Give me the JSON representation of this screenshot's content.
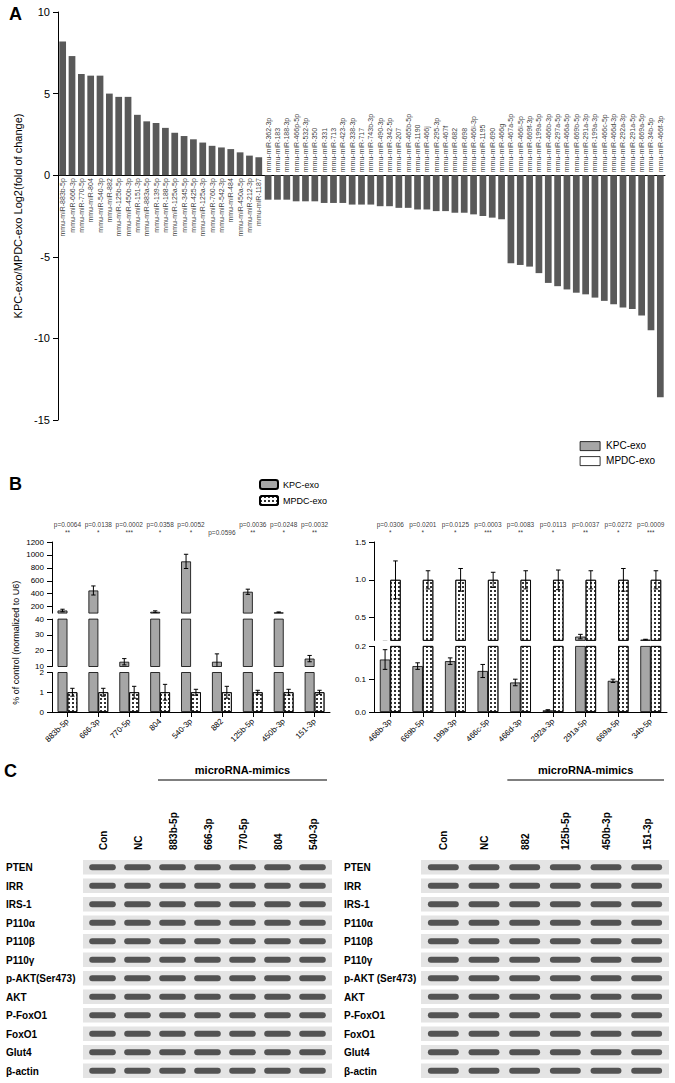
{
  "chart_data": [
    {
      "type": "bar",
      "title": "A",
      "ylabel": "KPC-exo/MPDC-exo Log2(fold of change)",
      "categories": [
        "mmu-miR-883b-5p",
        "mmu-miR-666-3p",
        "mmu-miR-770-5p",
        "mmu-miR-804",
        "mmu-miR-540-3p",
        "mmu-miR-882",
        "mmu-miR-125b-5p",
        "mmu-miR-450b-3p",
        "mmu-miR-151-3p",
        "mmu-miR-883a-5p",
        "mmu-miR-139-5p",
        "mmu-miR-188-5p",
        "mmu-miR-125a-5p",
        "mmu-miR-345-5p",
        "mmu-miR-425-5p",
        "mmu-miR-125a-3p",
        "mmu-miR-760-3p",
        "mmu-miR-542-3p",
        "mmu-miR-484",
        "mmu-miR-450a-5p",
        "mmu-miR-212-3p",
        "mmu-miR-1187",
        "mmu-miR-362-3p",
        "mmu-miR-183",
        "mmu-miR-188-3p",
        "mmu-miR-466p-5p",
        "mmu-miR-532-3p",
        "mmu-miR-350",
        "mmu-miR-331",
        "mmu-miR-713",
        "mmu-miR-423-3p",
        "mmu-miR-338-3p",
        "mmu-miR-717",
        "mmu-miR-743b-3p",
        "mmu-miR-490-3p",
        "mmu-miR-342-5p",
        "mmu-miR-207",
        "mmu-miR-465b-5p",
        "mmu-miR-1190",
        "mmu-miR-466j",
        "mmu-miR-295-3p",
        "mmu-miR-467f",
        "mmu-miR-682",
        "mmu-miR-698",
        "mmu-miR-466i-3p",
        "mmu-miR-1195",
        "mmu-miR-690",
        "mmu-miR-466g",
        "mmu-miR-467a-5p",
        "mmu-miR-466i-5p",
        "mmu-miR-669f-3p",
        "mmu-miR-199a-5p",
        "mmu-miR-466b-3p",
        "mmu-miR-297a-5p",
        "mmu-miR-466a-5p",
        "mmu-miR-669b-5p",
        "mmu-miR-291a-3p",
        "mmu-miR-199a-3p",
        "mmu-miR-466c-5p",
        "mmu-miR-466d-3p",
        "mmu-miR-292a-3p",
        "mmu-miR-291a-5p",
        "mmu-miR-669a-5p",
        "mmu-miR-34b-5p",
        "mmu-miR-466f-3p"
      ],
      "values": [
        8.2,
        7.3,
        6.2,
        6.1,
        6.1,
        5,
        4.8,
        4.8,
        3.7,
        3.3,
        3.2,
        2.9,
        2.6,
        2.4,
        2.2,
        2,
        1.8,
        1.7,
        1.6,
        1.4,
        1.2,
        1.1,
        -1.5,
        -1.5,
        -1.5,
        -1.6,
        -1.6,
        -1.6,
        -1.7,
        -1.7,
        -1.7,
        -1.8,
        -1.8,
        -1.8,
        -1.9,
        -1.9,
        -2,
        -2,
        -2.1,
        -2.1,
        -2.2,
        -2.2,
        -2.3,
        -2.3,
        -2.4,
        -2.5,
        -2.6,
        -2.7,
        -5.4,
        -5.5,
        -5.6,
        -6,
        -6.6,
        -6.8,
        -7,
        -7.2,
        -7.3,
        -7.5,
        -7.7,
        -7.9,
        -8.1,
        -8.2,
        -8.6,
        -9.5,
        -13.6
      ],
      "color": "#595959",
      "ylim": [
        -15,
        10
      ],
      "yticks": [
        -15,
        -10,
        -5,
        0,
        5,
        10
      ],
      "grid": false,
      "annotations": [
        "KPC-exo",
        "MPDC-exo"
      ]
    },
    {
      "type": "bar",
      "title": "B",
      "ylabel": "% of control (normalized to U6)",
      "legend": "upper right",
      "grid": false,
      "categories": [
        "883b-5p",
        "666-3p",
        "770-5p",
        "804",
        "540-3p",
        "882",
        "125b-5p",
        "450b-3p",
        "151-3p"
      ],
      "series": [
        {
          "name": "KPC-exo",
          "color": "#a6a6a6",
          "values": [
            140,
            450,
            13,
            120,
            900,
            13,
            430,
            110,
            15
          ],
          "errors": [
            20,
            70,
            2,
            15,
            110,
            5,
            40,
            8,
            2
          ]
        },
        {
          "name": "MPDC-exo",
          "color": "#ffffff",
          "values": [
            1,
            1,
            1,
            1,
            1,
            1,
            1,
            1,
            1
          ],
          "errors": [
            0.2,
            0.2,
            0.3,
            0.4,
            0.15,
            0.3,
            0.1,
            0.15,
            0.1
          ]
        }
      ],
      "segments": [
        {
          "ylim": [
            0,
            2
          ],
          "yticks": [
            0,
            1,
            2
          ]
        },
        {
          "ylim": [
            10,
            40
          ],
          "yticks": [
            10,
            20,
            30,
            40
          ]
        },
        {
          "ylim": [
            100,
            1200
          ],
          "yticks": [
            200,
            400,
            600,
            800,
            1000,
            1200
          ]
        }
      ],
      "annotations": [
        {
          "category": "883b-5p",
          "text": "p=0.0064",
          "stars": "**"
        },
        {
          "category": "666-3p",
          "text": "p=0.0138",
          "stars": "*"
        },
        {
          "category": "770-5p",
          "text": "p=0.0002",
          "stars": "***"
        },
        {
          "category": "804",
          "text": "p=0.0358",
          "stars": "*"
        },
        {
          "category": "540-3p",
          "text": "p=0.0052",
          "stars": "*"
        },
        {
          "category": "882",
          "text": "p=0.0596"
        },
        {
          "category": "125b-5p",
          "text": "p=0.0036",
          "stars": "**"
        },
        {
          "category": "450b-3p",
          "text": "p=0.0248",
          "stars": "*"
        },
        {
          "category": "151-3p",
          "text": "p=0.0032",
          "stars": "**"
        }
      ]
    },
    {
      "type": "bar",
      "grid": false,
      "categories": [
        "466b-3p",
        "669b-5p",
        "199a-3p",
        "466c-5p",
        "466d-3p",
        "292a-3p",
        "291a-5p",
        "669a-5p",
        "34b-5p"
      ],
      "series": [
        {
          "name": "KPC-exo",
          "color": "#a6a6a6",
          "values": [
            0.16,
            0.14,
            0.155,
            0.125,
            0.09,
            0.005,
            0.25,
            0.095,
            0.21
          ],
          "errors": [
            0.03,
            0.01,
            0.01,
            0.02,
            0.01,
            0.002,
            0.03,
            0.005,
            0.005
          ]
        },
        {
          "name": "MPDC-exo",
          "color": "#ffffff",
          "values": [
            1,
            1,
            1,
            1,
            1,
            1,
            1,
            1,
            1
          ],
          "errors": [
            0.25,
            0.12,
            0.15,
            0.1,
            0.12,
            0.13,
            0.12,
            0.15,
            0.12
          ]
        }
      ],
      "segments": [
        {
          "ylim": [
            0,
            0.2
          ],
          "yticks": [
            {
              "value": 0,
              "label": "0.0"
            },
            0.1,
            0.2
          ]
        },
        {
          "ylim": [
            0.2,
            1.5
          ],
          "yticks": [
            0.5,
            {
              "value": 1,
              "label": "1.0"
            },
            1.5
          ]
        }
      ],
      "annotations": [
        {
          "category": "466b-3p",
          "text": "p=0.0306",
          "stars": "*"
        },
        {
          "category": "669b-5p",
          "text": "p=0.0201",
          "stars": "*"
        },
        {
          "category": "199a-3p",
          "text": "p=0.0125",
          "stars": "*"
        },
        {
          "category": "466c-5p",
          "text": "p=0.0003",
          "stars": "***"
        },
        {
          "category": "466d-3p",
          "text": "p=0.0083",
          "stars": "**"
        },
        {
          "category": "292a-3p",
          "text": "p=0.0113",
          "stars": "*"
        },
        {
          "category": "291a-5p",
          "text": "p=0.0037",
          "stars": "**"
        },
        {
          "category": "669a-5p",
          "text": "p=0.0272",
          "stars": "*"
        },
        {
          "category": "34b-5p",
          "text": "p=0.0009",
          "stars": "***"
        }
      ]
    }
  ],
  "blots": [
    {
      "title": "C",
      "header": "microRNA-mimics",
      "controls": [
        "Con",
        "NC"
      ],
      "mimics": [
        "883b-5p",
        "666-3p",
        "770-5p",
        "804",
        "540-3p"
      ],
      "proteins": [
        "PTEN",
        "IRR",
        "IRS-1",
        "P110α",
        "P110β",
        "P110γ",
        "p-AKT(Ser473)",
        "AKT",
        "P-FoxO1",
        "FoxO1",
        "Glut4",
        "β-actin"
      ]
    },
    {
      "header": "microRNA-mimics",
      "controls": [
        "Con",
        "NC"
      ],
      "mimics": [
        "882",
        "125b-5p",
        "450b-3p",
        "151-3p"
      ],
      "proteins": [
        "PTEN",
        "IRR",
        "IRS-1",
        "P110α",
        "P110β",
        "P110γ",
        "p-AKT (Ser473)",
        "AKT",
        "P-FoxO1",
        "FoxO1",
        "Glut4",
        "β-actin"
      ]
    }
  ]
}
